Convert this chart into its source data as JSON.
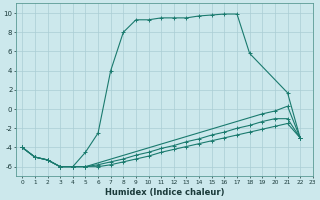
{
  "xlabel": "Humidex (Indice chaleur)",
  "bg_color": "#cce8ec",
  "grid_color": "#aacdd4",
  "line_color": "#1a7a6e",
  "xlim": [
    -0.5,
    23
  ],
  "ylim": [
    -7,
    11
  ],
  "xticks": [
    0,
    1,
    2,
    3,
    4,
    5,
    6,
    7,
    8,
    9,
    10,
    11,
    12,
    13,
    14,
    15,
    16,
    17,
    18,
    19,
    20,
    21,
    22,
    23
  ],
  "yticks": [
    -6,
    -4,
    -2,
    0,
    2,
    4,
    6,
    8,
    10
  ],
  "line1_x": [
    0,
    1,
    2,
    3,
    4,
    5,
    6,
    7,
    8,
    9,
    10,
    11,
    12,
    13,
    14,
    15,
    16,
    17,
    18,
    21,
    22
  ],
  "line1_y": [
    -4.0,
    -5.0,
    -5.3,
    -6.0,
    -6.0,
    -4.5,
    -2.5,
    4.0,
    8.0,
    9.3,
    9.3,
    9.5,
    9.5,
    9.5,
    9.7,
    9.8,
    9.9,
    9.9,
    5.8,
    1.7,
    -3.0
  ],
  "line2_x": [
    0,
    1,
    2,
    3,
    4,
    5,
    6,
    7,
    8,
    9,
    10,
    11,
    12,
    13,
    14,
    15,
    16,
    17,
    18,
    19,
    20,
    21,
    22
  ],
  "line2_y": [
    -4.0,
    -5.0,
    -5.3,
    -6.0,
    -6.0,
    -6.0,
    -5.8,
    -5.5,
    -5.2,
    -4.8,
    -4.5,
    -4.1,
    -3.8,
    -3.4,
    -3.1,
    -2.7,
    -2.4,
    -2.0,
    -1.7,
    -1.3,
    -1.0,
    -1.0,
    -3.0
  ],
  "line3_x": [
    0,
    1,
    2,
    3,
    4,
    5,
    6,
    7,
    8,
    9,
    10,
    11,
    12,
    13,
    14,
    15,
    16,
    17,
    18,
    19,
    20,
    21,
    22
  ],
  "line3_y": [
    -4.0,
    -5.0,
    -5.3,
    -6.0,
    -6.0,
    -6.0,
    -6.0,
    -5.8,
    -5.5,
    -5.2,
    -4.9,
    -4.5,
    -4.2,
    -3.9,
    -3.6,
    -3.3,
    -3.0,
    -2.7,
    -2.4,
    -2.1,
    -1.8,
    -1.5,
    -3.0
  ],
  "line4_x": [
    0,
    1,
    2,
    3,
    4,
    5,
    19,
    20,
    21,
    22
  ],
  "line4_y": [
    -4.0,
    -5.0,
    -5.3,
    -6.0,
    -6.0,
    -6.0,
    -0.5,
    -0.2,
    0.3,
    -3.0
  ]
}
